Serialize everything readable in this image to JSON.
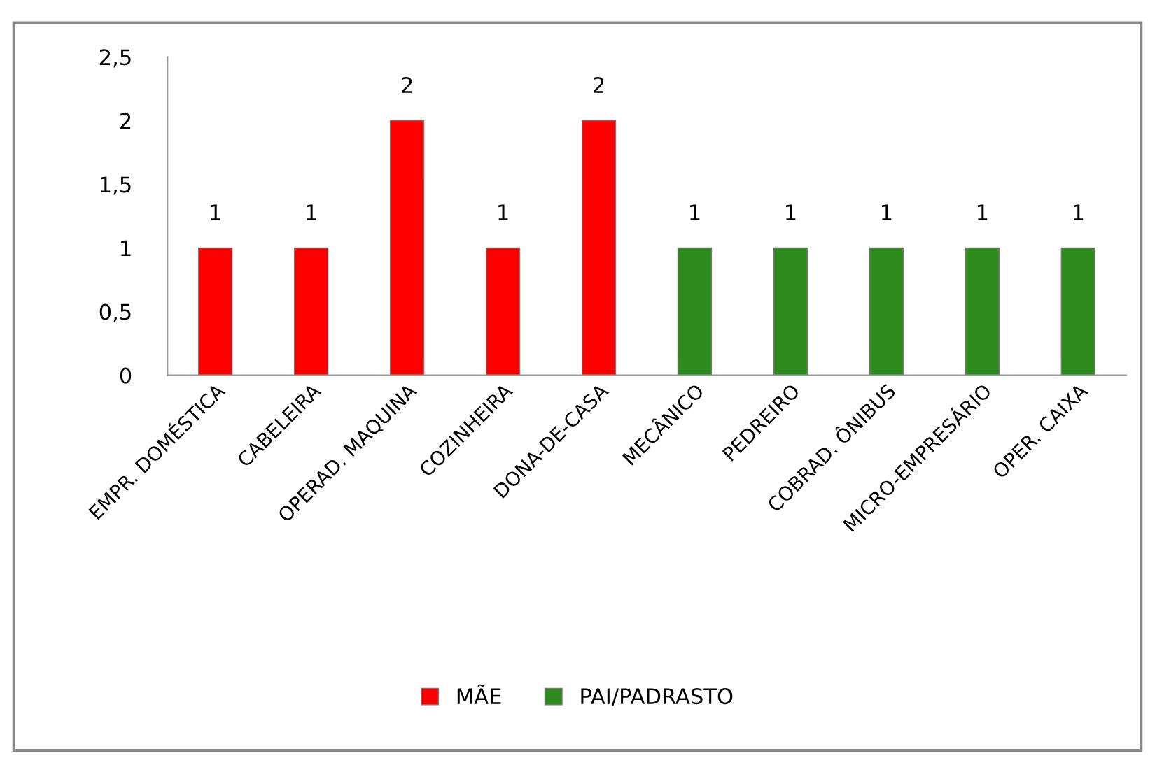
{
  "chart_data": {
    "type": "bar",
    "stacked": true,
    "categories": [
      "EMPR. DOMÉSTICA",
      "CABELEIRA",
      "OPERAD. MAQUINA",
      "COZINHEIRA",
      "DONA-DE-CASA",
      "MECÂNICO",
      "PEDREIRO",
      "COBRAD. ÔNIBUS",
      "MICRO-EMPRESÁRIO",
      "OPER. CAIXA"
    ],
    "series": [
      {
        "name": "MÃE",
        "color": "#ff0000",
        "values": [
          1,
          1,
          2,
          1,
          2,
          null,
          null,
          null,
          null,
          null
        ]
      },
      {
        "name": "PAI/PADRASTO",
        "color": "#2e8b1e",
        "values": [
          null,
          null,
          null,
          null,
          null,
          1,
          1,
          1,
          1,
          1
        ]
      }
    ],
    "ylim": [
      0,
      2.5
    ],
    "yticks": [
      0,
      {
        "value": 0.5,
        "label": "0,5"
      },
      1,
      {
        "value": 1.5,
        "label": "1,5"
      },
      2,
      {
        "value": 2.5,
        "label": "2,5"
      }
    ],
    "data_labels": true,
    "grid": false,
    "legend": "bottom"
  }
}
